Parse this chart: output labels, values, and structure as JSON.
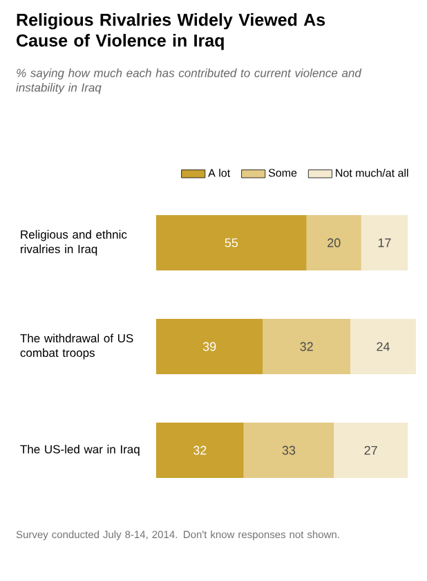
{
  "chart_data": {
    "type": "bar",
    "orientation": "horizontal",
    "stacked": true,
    "title": "Religious Rivalries Widely Viewed As Cause of Violence in Iraq",
    "subtitle": "% saying how much each has contributed to current violence and instability in Iraq",
    "categories": [
      "Religious and ethnic rivalries in Iraq",
      "The withdrawal of US combat troops",
      "The US-led war in Iraq"
    ],
    "series": [
      {
        "name": "A lot",
        "color": "#c9a22f",
        "values": [
          55,
          39,
          32
        ]
      },
      {
        "name": "Some",
        "color": "#e3ca85",
        "values": [
          20,
          32,
          33
        ]
      },
      {
        "name": "Not much/at all",
        "color": "#f4ead0",
        "values": [
          17,
          24,
          27
        ]
      }
    ],
    "data_labels": true,
    "legend": "top right",
    "grid": false,
    "annotations": [
      "Survey conducted July 8-14, 2014. Don't know responses not shown."
    ]
  }
}
